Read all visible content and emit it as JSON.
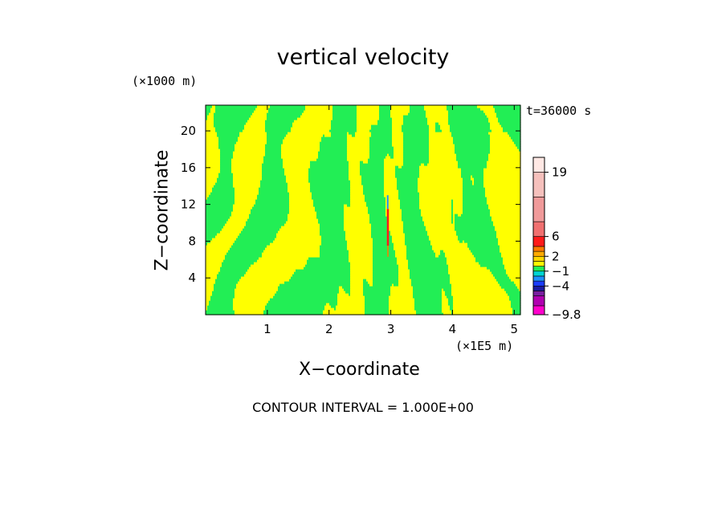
{
  "chart_data": {
    "type": "heatmap",
    "title": "vertical velocity",
    "xlabel": "X−coordinate",
    "ylabel": "Z−coordinate",
    "x_unit": "(×1E5 m)",
    "y_unit": "(×1000 m)",
    "time_label": "t=36000 s",
    "contour_interval": "CONTOUR INTERVAL = 1.000E+00",
    "xlim": [
      0,
      5.1
    ],
    "ylim": [
      0,
      22.8
    ],
    "x_ticks": [
      1,
      2,
      3,
      4,
      5
    ],
    "y_ticks": [
      4,
      8,
      12,
      16,
      20
    ],
    "x_tick_labels": [
      "1",
      "2",
      "3",
      "4",
      "5"
    ],
    "y_tick_labels": [
      "4",
      "8",
      "12",
      "16",
      "20"
    ],
    "field_description_levels": {
      "dominant_positive_color": "#ffff00",
      "dominant_negative_color": "#22ee55",
      "peak_updraft_x": 2.95,
      "peak_updraft_z": [
        7.5,
        11.5
      ]
    },
    "colorbar": {
      "min": -9.8,
      "max": 22,
      "labels": [
        "19",
        "6",
        "2",
        "−1",
        "−4",
        "−9.8"
      ],
      "label_values": [
        19,
        6,
        2,
        -1,
        -4,
        -9.8
      ],
      "levels": [
        {
          "lo": -9.8,
          "hi": -8,
          "color": "#ff00cc"
        },
        {
          "lo": -8,
          "hi": -6,
          "color": "#b000b0"
        },
        {
          "lo": -6,
          "hi": -5,
          "color": "#7a1fa0"
        },
        {
          "lo": -5,
          "hi": -4,
          "color": "#1a1aa0"
        },
        {
          "lo": -4,
          "hi": -3,
          "color": "#1a3cff"
        },
        {
          "lo": -3,
          "hi": -2,
          "color": "#1e90ff"
        },
        {
          "lo": -2,
          "hi": -1,
          "color": "#00d4d4"
        },
        {
          "lo": -1,
          "hi": 0,
          "color": "#22ee55"
        },
        {
          "lo": 0,
          "hi": 1,
          "color": "#ffff00"
        },
        {
          "lo": 1,
          "hi": 2,
          "color": "#ffd700"
        },
        {
          "lo": 2,
          "hi": 3,
          "color": "#ffaa00"
        },
        {
          "lo": 3,
          "hi": 4,
          "color": "#ff7a00"
        },
        {
          "lo": 4,
          "hi": 6,
          "color": "#ff1a1a"
        },
        {
          "lo": 6,
          "hi": 9,
          "color": "#f07070"
        },
        {
          "lo": 9,
          "hi": 14,
          "color": "#f09a9a"
        },
        {
          "lo": 14,
          "hi": 19,
          "color": "#f5c0bc"
        },
        {
          "lo": 19,
          "hi": 22,
          "color": "#ffe8e4"
        }
      ]
    }
  }
}
